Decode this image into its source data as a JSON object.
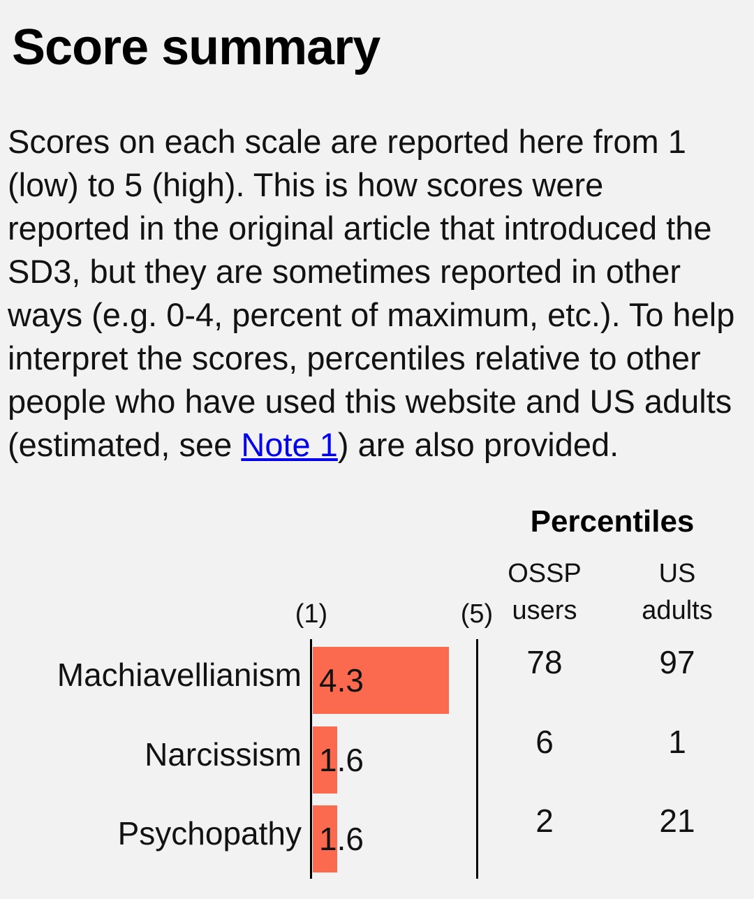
{
  "page": {
    "background": "#f2f2f2",
    "title": "Score summary"
  },
  "summary": {
    "text_before_link": "Scores on each scale are reported here from 1\n(low) to 5 (high). This is how scores were\nreported in the original article that introduced the\nSD3, but they are sometimes reported in other\nways (e.g. 0-4, percent of maximum, etc.). To help\ninterpret the scores, percentiles relative to other\npeople who have used this website and US adults\n(estimated, see ",
    "link_text": "Note 1",
    "text_after_link": ") are also provided."
  },
  "chart_data": {
    "type": "bar",
    "orientation": "horizontal",
    "title": "Percentiles",
    "axis": {
      "min": 1,
      "max": 5,
      "min_label": "(1)",
      "max_label": "(5)"
    },
    "bar_color": "#fb6a4e",
    "columns": {
      "ossp": "OSSP users",
      "us": "US adults"
    },
    "categories": [
      "Machiavellianism",
      "Narcissism",
      "Psychopathy"
    ],
    "rows": [
      {
        "label": "Machiavellianism",
        "score": 4.3,
        "score_label": "4.3",
        "ossp_percentile": "78",
        "us_percentile": "97"
      },
      {
        "label": "Narcissism",
        "score": 1.6,
        "score_label": "1.6",
        "ossp_percentile": "6",
        "us_percentile": "1"
      },
      {
        "label": "Psychopathy",
        "score": 1.6,
        "score_label": "1.6",
        "ossp_percentile": "2",
        "us_percentile": "21"
      }
    ]
  }
}
